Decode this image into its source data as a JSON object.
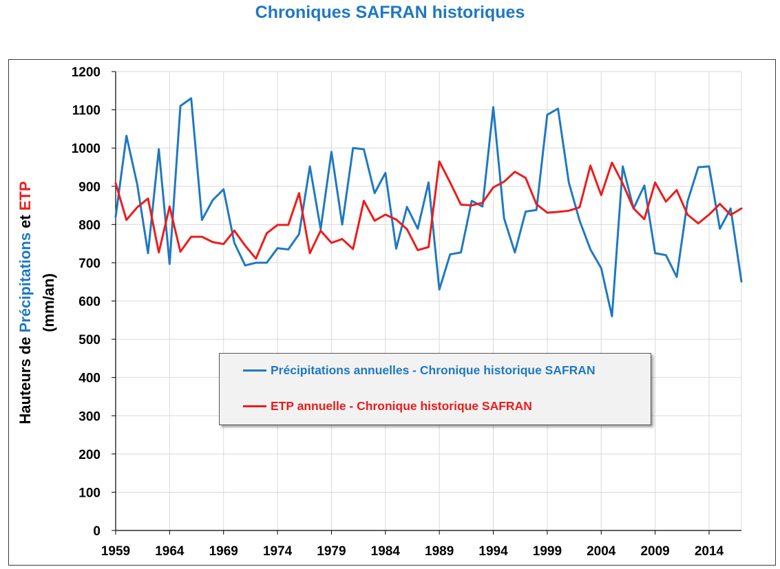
{
  "chart_data": {
    "type": "line",
    "title": "Chroniques SAFRAN historiques",
    "ylabel_parts": [
      "Hauteurs de ",
      "Précipitations",
      " et ",
      "ETP"
    ],
    "ylabel_unit": "(mm/an)",
    "xlabel": "",
    "ylim": [
      0,
      1200
    ],
    "y_ticks": [
      0,
      100,
      200,
      300,
      400,
      500,
      600,
      700,
      800,
      900,
      1000,
      1100,
      1200
    ],
    "x_range": [
      1959,
      2017
    ],
    "x_ticks": [
      1959,
      1964,
      1969,
      1974,
      1979,
      1984,
      1989,
      1994,
      1999,
      2004,
      2009,
      2014
    ],
    "grid": true,
    "legend_position": "center",
    "x": [
      1959,
      1960,
      1961,
      1962,
      1963,
      1964,
      1965,
      1966,
      1967,
      1968,
      1969,
      1970,
      1971,
      1972,
      1973,
      1974,
      1975,
      1976,
      1977,
      1978,
      1979,
      1980,
      1981,
      1982,
      1983,
      1984,
      1985,
      1986,
      1987,
      1988,
      1989,
      1990,
      1991,
      1992,
      1993,
      1994,
      1995,
      1996,
      1997,
      1998,
      1999,
      2000,
      2001,
      2002,
      2003,
      2004,
      2005,
      2006,
      2007,
      2008,
      2009,
      2010,
      2011,
      2012,
      2013,
      2014,
      2015,
      2016,
      2017
    ],
    "series": [
      {
        "name": "Précipitations annuelles - Chronique historique SAFRAN",
        "color": "#1f78c1",
        "values": [
          820,
          1032,
          905,
          725,
          997,
          697,
          1110,
          1130,
          812,
          864,
          892,
          752,
          693,
          700,
          700,
          738,
          735,
          775,
          952,
          788,
          990,
          800,
          1000,
          997,
          882,
          935,
          737,
          846,
          789,
          910,
          630,
          722,
          727,
          862,
          847,
          1107,
          816,
          727,
          834,
          838,
          1087,
          1103,
          910,
          810,
          735,
          686,
          560,
          952,
          842,
          902,
          725,
          720,
          663,
          860,
          950,
          952,
          789,
          842,
          651
        ]
      },
      {
        "name": "ETP annuelle - Chronique historique SAFRAN",
        "color": "#ee1b1b",
        "values": [
          908,
          812,
          845,
          868,
          727,
          847,
          729,
          768,
          768,
          754,
          749,
          784,
          745,
          711,
          777,
          799,
          799,
          882,
          725,
          784,
          752,
          762,
          736,
          862,
          810,
          826,
          813,
          788,
          733,
          741,
          965,
          910,
          852,
          850,
          857,
          897,
          912,
          938,
          922,
          853,
          831,
          833,
          836,
          845,
          954,
          877,
          962,
          907,
          842,
          814,
          910,
          860,
          890,
          826,
          803,
          826,
          854,
          825,
          842
        ]
      }
    ]
  }
}
